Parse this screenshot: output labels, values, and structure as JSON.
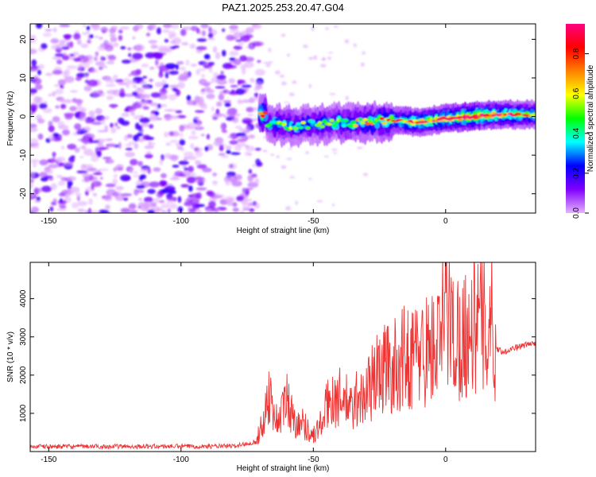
{
  "title": "PAZ1.2025.253.20.47.G04",
  "chart_data": [
    {
      "type": "heatmap",
      "name": "spectrogram",
      "xlabel": "Height of straight line (km)",
      "ylabel": "Frequency (Hz)",
      "xlim": [
        -157,
        34
      ],
      "ylim": [
        -25,
        24
      ],
      "xticks": [
        -150,
        -100,
        -50,
        0
      ],
      "yticks": [
        -20,
        -10,
        0,
        10,
        20
      ],
      "colorbar": {
        "label": "Normalized spectral amplitude",
        "range": [
          0,
          0.95
        ],
        "ticks": [
          0.0,
          0.2,
          0.4,
          0.6,
          0.8
        ],
        "colors": [
          "#e6b3ff",
          "#8000ff",
          "#0000ff",
          "#00ffff",
          "#00ff00",
          "#ffff00",
          "#ff8000",
          "#ff0000",
          "#ff0080"
        ]
      },
      "features": {
        "noise_region_km": [
          -157,
          -70
        ],
        "signal_start_km": -70,
        "signal_track": [
          {
            "h": -68,
            "f": -1.5,
            "amp": 0.3
          },
          {
            "h": -60,
            "f": -2.5,
            "amp": 0.35
          },
          {
            "h": -50,
            "f": -2.0,
            "amp": 0.3
          },
          {
            "h": -40,
            "f": -1.5,
            "amp": 0.35
          },
          {
            "h": -30,
            "f": -1.5,
            "amp": 0.4
          },
          {
            "h": -20,
            "f": -1.0,
            "amp": 0.5
          },
          {
            "h": -10,
            "f": -1.5,
            "amp": 0.6
          },
          {
            "h": 0,
            "f": -0.5,
            "amp": 0.65
          },
          {
            "h": 10,
            "f": 0.0,
            "amp": 0.8
          },
          {
            "h": 20,
            "f": 0.5,
            "amp": 0.6
          },
          {
            "h": 34,
            "f": 0.5,
            "amp": 0.5
          }
        ]
      }
    },
    {
      "type": "line",
      "name": "snr",
      "xlabel": "Height of straight line (km)",
      "ylabel": "SNR (10 * v/v)",
      "xlim": [
        -157,
        34
      ],
      "ylim": [
        0,
        4950
      ],
      "xticks": [
        -150,
        -100,
        -50,
        0
      ],
      "yticks": [
        1000,
        2000,
        3000,
        4000
      ],
      "color": "#ee3333",
      "series": [
        {
          "name": "SNR",
          "x": [
            -157,
            -80,
            -72,
            -69,
            -67,
            -64,
            -62,
            -60,
            -57,
            -55,
            -52,
            -50,
            -47,
            -45,
            -43,
            -41,
            -39,
            -37,
            -35,
            -33,
            -31,
            -29,
            -27,
            -25,
            -23,
            -20,
            -17,
            -14,
            -11,
            -8,
            -5,
            -2,
            0,
            3,
            6,
            9,
            12,
            15,
            17,
            18,
            19,
            22,
            25,
            28,
            31,
            34
          ],
          "values": [
            130,
            140,
            250,
            900,
            1900,
            1000,
            1200,
            1700,
            900,
            1000,
            700,
            500,
            900,
            1400,
            1800,
            1600,
            1800,
            1500,
            1300,
            1900,
            1600,
            2100,
            2300,
            2500,
            2700,
            2600,
            2900,
            3000,
            3100,
            3200,
            3300,
            3400,
            4900,
            3600,
            3700,
            3800,
            4200,
            3900,
            4300,
            4000,
            2700,
            2600,
            2700,
            2750,
            2800,
            2850
          ]
        }
      ]
    }
  ]
}
